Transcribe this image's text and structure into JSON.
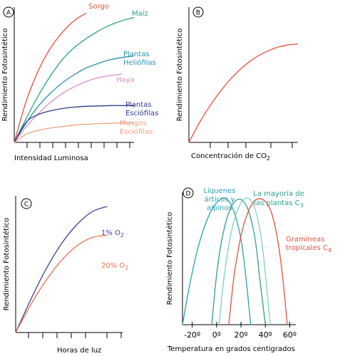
{
  "chart_data": [
    {
      "type": "line",
      "panel_label": "A",
      "xlabel": "Intensidad Luminosa",
      "ylabel": "Rendimiento Fotosintético",
      "grid": false,
      "legend": "labels next to curves",
      "series": [
        {
          "name": "Sorgo",
          "color": "#e8503a",
          "x": [
            0,
            1,
            2,
            3,
            4,
            5,
            6
          ],
          "y": [
            0,
            5.5,
            9.5,
            12.5,
            14.6,
            16.2,
            17.2
          ]
        },
        {
          "name": "Maíz",
          "color": "#2aa38a",
          "x": [
            0,
            1,
            2,
            3,
            4,
            5,
            6,
            7,
            8,
            9,
            10
          ],
          "y": [
            0,
            3.2,
            6.2,
            8.8,
            11,
            12.6,
            13.8,
            14.8,
            15.6,
            16.2,
            16.6
          ]
        },
        {
          "name": "Plantas Heliófilas",
          "color": "#2a8fb0",
          "x": [
            0,
            1,
            2,
            3,
            4,
            5,
            6,
            7,
            8,
            9,
            10
          ],
          "y": [
            0,
            2.6,
            4.8,
            6.5,
            7.9,
            9,
            9.9,
            10.5,
            11,
            11.3,
            11.5
          ]
        },
        {
          "name": "Haya",
          "color": "#d98cd0",
          "x": [
            0,
            1,
            2,
            3,
            4,
            5,
            6,
            7,
            8,
            9
          ],
          "y": [
            0,
            2.1,
            3.8,
            5.3,
            6.5,
            7.4,
            8.1,
            8.6,
            8.9,
            9.1
          ]
        },
        {
          "name": "Plantas Esciófilas",
          "color": "#2c3a8c",
          "x": [
            0,
            1,
            2,
            3,
            4,
            5,
            6,
            7,
            8,
            9,
            10
          ],
          "y": [
            0,
            2.7,
            3.7,
            4.2,
            4.5,
            4.7,
            4.8,
            4.85,
            4.9,
            4.9,
            4.9
          ]
        },
        {
          "name": "Musgos Esciófilas",
          "color": "#f2a07a",
          "x": [
            0,
            1,
            2,
            3,
            4,
            5,
            6,
            7,
            8,
            9,
            10
          ],
          "y": [
            0,
            1.1,
            1.6,
            1.9,
            2.1,
            2.3,
            2.4,
            2.5,
            2.55,
            2.6,
            2.6
          ]
        }
      ],
      "xlim": [
        0,
        10
      ],
      "ylim": [
        0,
        18
      ]
    },
    {
      "type": "line",
      "panel_label": "B",
      "xlabel": "Concentración de CO",
      "xlabel_sub": "2",
      "ylabel": "Rendimiento Fotosintético",
      "grid": false,
      "series": [
        {
          "color": "#e8503a",
          "x": [
            0,
            1,
            2,
            3,
            4,
            5,
            6,
            7,
            8,
            9,
            10
          ],
          "y": [
            0,
            2.7,
            5,
            7,
            8.7,
            10.1,
            11.2,
            12,
            12.6,
            12.95,
            13.1
          ]
        }
      ],
      "xlim": [
        0,
        10
      ],
      "ylim": [
        0,
        18
      ]
    },
    {
      "type": "line",
      "panel_label": "C",
      "xlabel": "Horas de luz",
      "ylabel": "Rendimiento Fotosintético",
      "grid": false,
      "series": [
        {
          "name": "1% O",
          "name_sub": "2",
          "color": "#4a3c9a",
          "x": [
            0,
            1,
            2,
            3,
            4,
            5,
            6
          ],
          "y": [
            0,
            4.4,
            8.4,
            11.7,
            14.2,
            15.9,
            16.6
          ]
        },
        {
          "name": "20% O",
          "name_sub": "2",
          "color": "#f06d4a",
          "x": [
            0,
            1,
            2,
            3,
            4,
            5,
            6
          ],
          "y": [
            0,
            3.7,
            6.9,
            9.5,
            11.4,
            12.5,
            12.8
          ]
        }
      ],
      "xlim": [
        0,
        7
      ],
      "ylim": [
        0,
        18
      ]
    },
    {
      "type": "line",
      "panel_label": "D",
      "xlabel": "Temperatura  en grados centigrados",
      "ylabel": "Rendimiento Fotosintético",
      "grid": false,
      "x_ticklabels": [
        "-20º",
        "0º",
        "20º",
        "40º",
        "60º"
      ],
      "x_ticks": [
        -20,
        0,
        20,
        40,
        60
      ],
      "series": [
        {
          "name": "Líquenes árticos y alpinos",
          "color": "#2aa0b4",
          "x": [
            -28,
            -22,
            -16,
            -10,
            -4,
            2,
            8,
            14,
            20,
            24,
            28
          ],
          "y": [
            0,
            5.5,
            10,
            13.3,
            15.6,
            16.9,
            17.1,
            15.5,
            11.6,
            6.5,
            0
          ]
        },
        {
          "name": "La mayoría de las plantas C",
          "name_sub": "3",
          "color": "#2aa38a",
          "x": [
            -4,
            0,
            4,
            8,
            12,
            16,
            20,
            24,
            28,
            32,
            36,
            40
          ],
          "y": [
            0,
            6.8,
            11.3,
            14.2,
            16,
            16.9,
            17,
            16.3,
            14.5,
            11.2,
            5.5,
            0
          ]
        },
        {
          "name": "",
          "color": "#7fd0c0",
          "x": [
            2,
            6,
            10,
            14,
            18,
            22,
            26,
            30,
            34,
            38,
            42,
            44
          ],
          "y": [
            0,
            6.3,
            10.8,
            13.9,
            15.9,
            17,
            17.2,
            16.4,
            14.2,
            10.1,
            3.5,
            0
          ]
        },
        {
          "name": "Gramíneas tropicales C",
          "name_sub": "4",
          "color": "#e8503a",
          "x": [
            10,
            14,
            18,
            22,
            26,
            30,
            34,
            38,
            42,
            46,
            50,
            54,
            58
          ],
          "y": [
            0,
            6.2,
            10.4,
            13.4,
            15.4,
            16.6,
            17.1,
            17,
            16.3,
            14.7,
            11.6,
            6.8,
            0
          ]
        }
      ],
      "xlim": [
        -28,
        65
      ],
      "ylim": [
        0,
        18
      ]
    }
  ]
}
